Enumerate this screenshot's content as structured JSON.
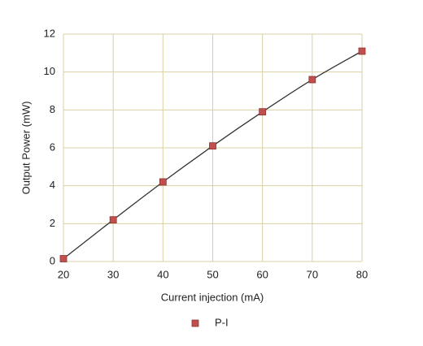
{
  "chart_data": {
    "type": "scatter",
    "xlabel": "Current injection (mA)",
    "ylabel": "Output Power (mW)",
    "x": [
      20,
      30,
      40,
      50,
      60,
      70,
      80
    ],
    "series": [
      {
        "name": "P-I",
        "color": "#c0504d",
        "values": [
          0.15,
          2.2,
          4.2,
          6.1,
          7.9,
          9.6,
          11.1
        ]
      }
    ],
    "xlim": [
      20,
      80
    ],
    "xticks": [
      20,
      30,
      40,
      50,
      60,
      70,
      80
    ],
    "ylim": [
      0,
      12
    ],
    "yticks": [
      0,
      2,
      4,
      6,
      8,
      10,
      12
    ],
    "grid": true,
    "smooth_line": true,
    "legend": "bottom"
  }
}
